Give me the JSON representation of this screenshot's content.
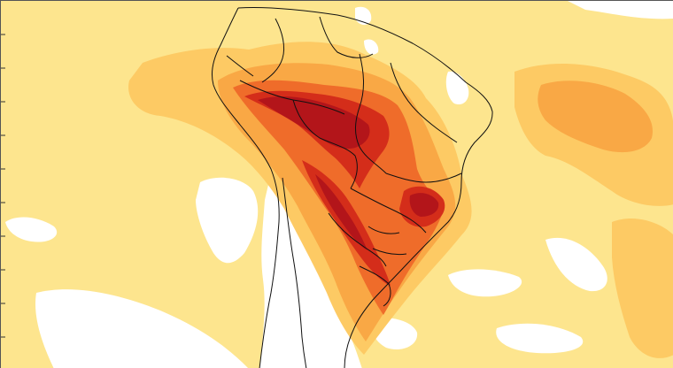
{
  "map": {
    "type": "anomaly-field-map",
    "region": "South America",
    "legend_shown": false,
    "levels": [
      {
        "name": "background",
        "color": "#ffffff"
      },
      {
        "name": "level-1",
        "color": "#fde58e"
      },
      {
        "name": "level-2",
        "color": "#fdca64"
      },
      {
        "name": "level-3",
        "color": "#f9a845"
      },
      {
        "name": "level-4",
        "color": "#ef6c2a"
      },
      {
        "name": "level-5",
        "color": "#d42d1a"
      },
      {
        "name": "level-6",
        "color": "#b3151a"
      }
    ],
    "line_colors": {
      "coastline": "#111111",
      "borders": "#111111"
    }
  }
}
